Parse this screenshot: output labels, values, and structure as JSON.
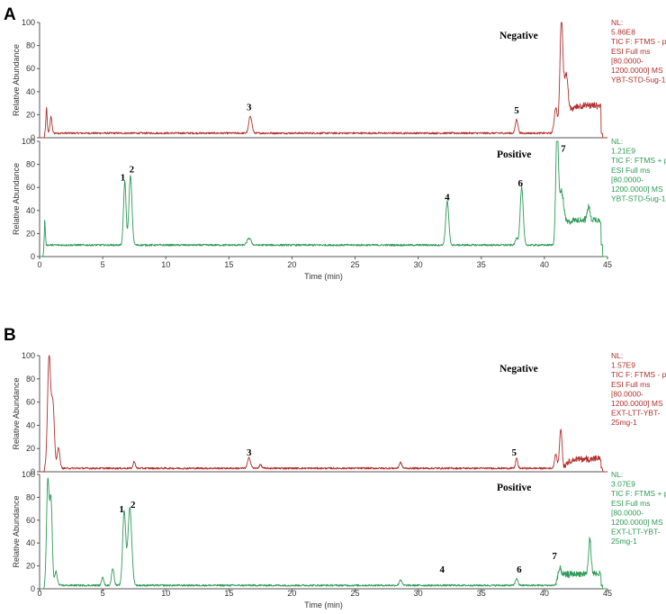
{
  "colors": {
    "negative": "#b0302c",
    "positive": "#2e9a58",
    "axis": "#555555",
    "text": "#333333"
  },
  "chart_data": [
    {
      "panel": "A",
      "type": "line",
      "xlabel": "Time (min)",
      "ylabel": "Relative Abundance",
      "xlim": [
        0,
        45
      ],
      "ylim": [
        0,
        100
      ],
      "x_ticks": [
        0,
        5,
        10,
        15,
        20,
        25,
        30,
        35,
        40,
        45
      ],
      "y_ticks": [
        0,
        20,
        40,
        60,
        80,
        100
      ],
      "series": [
        {
          "name": "Negative",
          "color": "#b0302c",
          "info": [
            "NL:",
            "5.86E8",
            "TIC F: FTMS - p",
            "ESI Full ms",
            "[80.0000-",
            "1200.0000]  MS",
            "YBT-STD-5ug-1"
          ],
          "baseline": 4,
          "end": 44.6,
          "peaks": [
            [
              0.55,
              22,
              0.05
            ],
            [
              0.9,
              14,
              0.08
            ],
            [
              16.7,
              15,
              0.12
            ],
            [
              37.8,
              12,
              0.1
            ],
            [
              40.9,
              22,
              0.12
            ],
            [
              41.35,
              98,
              0.12
            ],
            [
              41.7,
              40,
              0.15
            ]
          ],
          "plateau": [
            41.5,
            44.5,
            24
          ],
          "labels": [
            {
              "text": "3",
              "x": 16.6,
              "y": 24
            },
            {
              "text": "5",
              "x": 37.8,
              "y": 21
            }
          ]
        },
        {
          "name": "Positive",
          "color": "#2e9a58",
          "info": [
            "NL:",
            "1.21E9",
            "TIC F: FTMS + p",
            "ESI Full ms",
            "[80.0000-",
            "1200.0000]  MS",
            "YBT-STD-5ug-1"
          ],
          "baseline": 10,
          "end": 44.6,
          "peaks": [
            [
              0.4,
              22,
              0.05
            ],
            [
              6.75,
              55,
              0.1
            ],
            [
              7.2,
              60,
              0.12
            ],
            [
              16.6,
              6,
              0.15
            ],
            [
              32.3,
              38,
              0.12
            ],
            [
              37.8,
              6,
              0.1
            ],
            [
              38.2,
              50,
              0.12
            ],
            [
              41.0,
              92,
              0.1
            ],
            [
              41.3,
              40,
              0.2
            ],
            [
              43.5,
              12,
              0.1
            ]
          ],
          "plateau": [
            41.2,
            44.5,
            22
          ],
          "labels": [
            {
              "text": "1",
              "x": 6.6,
              "y": 66
            },
            {
              "text": "2",
              "x": 7.3,
              "y": 73
            },
            {
              "text": "4",
              "x": 32.3,
              "y": 49
            },
            {
              "text": "6",
              "x": 38.1,
              "y": 61
            },
            {
              "text": "7",
              "x": 41.5,
              "y": 91
            }
          ]
        }
      ]
    },
    {
      "panel": "B",
      "type": "line",
      "xlabel": "Time (min)",
      "ylabel": "Relative Abundance",
      "xlim": [
        0,
        45
      ],
      "ylim": [
        0,
        100
      ],
      "x_ticks": [
        0,
        5,
        10,
        15,
        20,
        25,
        30,
        35,
        40,
        45
      ],
      "y_ticks": [
        0,
        20,
        40,
        60,
        80,
        100
      ],
      "series": [
        {
          "name": "Negative",
          "color": "#b0302c",
          "info": [
            "NL:",
            "1.57E9",
            "TIC F: FTMS - p",
            "ESI Full ms",
            "[80.0000-",
            "1200.0000]  MS",
            "EXT-LTT-YBT-",
            "25mg-1"
          ],
          "baseline": 3,
          "end": 44.6,
          "peaks": [
            [
              0.75,
              96,
              0.12
            ],
            [
              1.05,
              55,
              0.12
            ],
            [
              1.5,
              18,
              0.1
            ],
            [
              7.5,
              6,
              0.08
            ],
            [
              16.6,
              9,
              0.12
            ],
            [
              17.5,
              3,
              0.1
            ],
            [
              28.6,
              5,
              0.1
            ],
            [
              37.8,
              9,
              0.08
            ],
            [
              40.9,
              12,
              0.1
            ],
            [
              41.3,
              34,
              0.1
            ]
          ],
          "plateau": [
            41.5,
            44.5,
            8
          ],
          "labels": [
            {
              "text": "3",
              "x": 16.6,
              "y": 14
            },
            {
              "text": "5",
              "x": 37.6,
              "y": 14
            }
          ]
        },
        {
          "name": "Positive",
          "color": "#2e9a58",
          "info": [
            "NL:",
            "3.07E9",
            "TIC F: FTMS + p",
            "ESI Full ms",
            "[80.0000-",
            "1200.0000]  MS",
            "EXT-LTT-YBT-",
            "25mg-1"
          ],
          "baseline": 3,
          "end": 44.6,
          "peaks": [
            [
              0.65,
              90,
              0.1
            ],
            [
              0.9,
              75,
              0.1
            ],
            [
              1.3,
              12,
              0.1
            ],
            [
              5.0,
              8,
              0.08
            ],
            [
              5.8,
              15,
              0.1
            ],
            [
              6.7,
              65,
              0.12
            ],
            [
              7.15,
              68,
              0.15
            ],
            [
              28.6,
              5,
              0.1
            ],
            [
              37.8,
              6,
              0.1
            ],
            [
              41.2,
              8,
              0.15
            ],
            [
              43.6,
              30,
              0.1
            ]
          ],
          "plateau": [
            40.9,
            44.5,
            10
          ],
          "labels": [
            {
              "text": "1",
              "x": 6.5,
              "y": 67
            },
            {
              "text": "2",
              "x": 7.4,
              "y": 71
            },
            {
              "text": "4",
              "x": 31.9,
              "y": 14
            },
            {
              "text": "6",
              "x": 38.0,
              "y": 14
            },
            {
              "text": "7",
              "x": 40.8,
              "y": 26
            }
          ]
        }
      ]
    }
  ]
}
